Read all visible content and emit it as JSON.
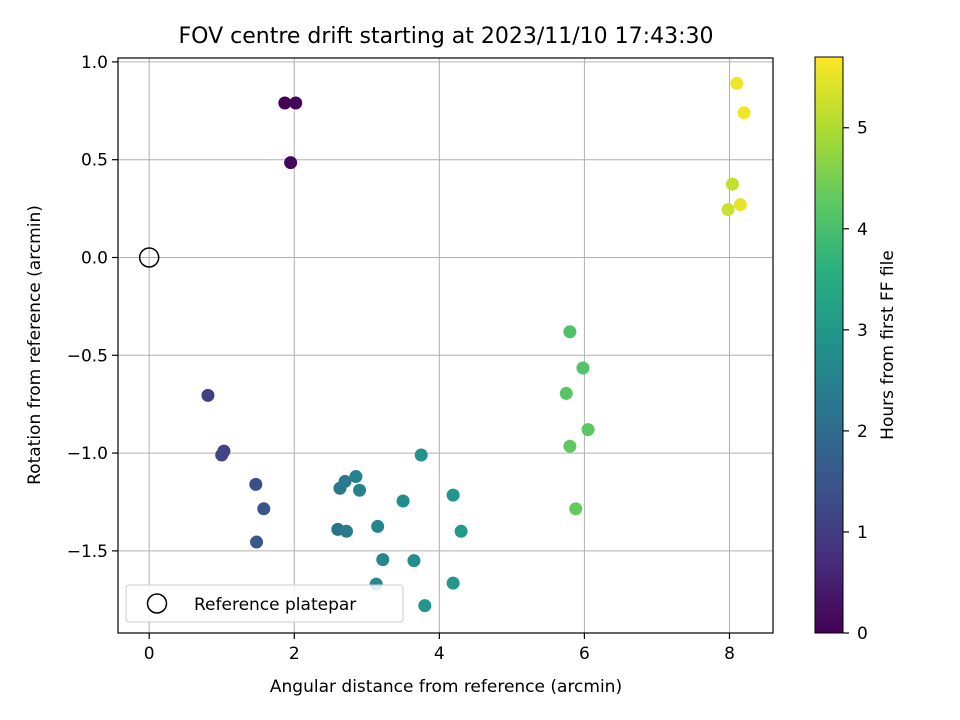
{
  "chart_data": {
    "type": "scatter",
    "title": "FOV centre drift starting at 2023/11/10 17:43:30",
    "xlabel": "Angular distance from reference (arcmin)",
    "ylabel": "Rotation from reference (arcmin)",
    "xlim": [
      -0.43,
      8.6
    ],
    "ylim": [
      -1.92,
      1.02
    ],
    "xticks": [
      0,
      2,
      4,
      6,
      8
    ],
    "xtick_labels": [
      "0",
      "2",
      "4",
      "6",
      "8"
    ],
    "yticks": [
      1.0,
      0.5,
      0.0,
      -0.5,
      -1.0,
      -1.5
    ],
    "ytick_labels": [
      "1.0",
      "0.5",
      "0.0",
      "−0.5",
      "−1.0",
      "−1.5"
    ],
    "grid": true,
    "legend": {
      "placement": "lower-left",
      "entries": [
        "Reference platepar"
      ]
    },
    "reference_point": {
      "x": 0,
      "y": 0
    },
    "colorbar": {
      "label": "Hours from first FF file",
      "colormap": "viridis",
      "range": [
        0,
        5.7
      ],
      "ticks": [
        0,
        1,
        2,
        3,
        4,
        5
      ],
      "tick_labels": [
        "0",
        "1",
        "2",
        "3",
        "4",
        "5"
      ]
    },
    "points": [
      {
        "x": 1.87,
        "y": 0.79,
        "c": 0.0
      },
      {
        "x": 2.02,
        "y": 0.79,
        "c": 0.05
      },
      {
        "x": 1.95,
        "y": 0.485,
        "c": 0.1
      },
      {
        "x": 0.81,
        "y": -0.705,
        "c": 1.1
      },
      {
        "x": 1.03,
        "y": -0.99,
        "c": 1.15
      },
      {
        "x": 1.0,
        "y": -1.01,
        "c": 1.2
      },
      {
        "x": 1.47,
        "y": -1.16,
        "c": 1.4
      },
      {
        "x": 1.58,
        "y": -1.285,
        "c": 1.5
      },
      {
        "x": 1.48,
        "y": -1.455,
        "c": 1.55
      },
      {
        "x": 2.6,
        "y": -1.39,
        "c": 2.2
      },
      {
        "x": 2.63,
        "y": -1.18,
        "c": 2.3
      },
      {
        "x": 2.7,
        "y": -1.145,
        "c": 2.35
      },
      {
        "x": 2.72,
        "y": -1.4,
        "c": 2.4
      },
      {
        "x": 2.85,
        "y": -1.12,
        "c": 2.5
      },
      {
        "x": 2.9,
        "y": -1.19,
        "c": 2.55
      },
      {
        "x": 3.15,
        "y": -1.375,
        "c": 2.6
      },
      {
        "x": 3.22,
        "y": -1.545,
        "c": 2.65
      },
      {
        "x": 3.13,
        "y": -1.67,
        "c": 2.7
      },
      {
        "x": 3.5,
        "y": -1.245,
        "c": 2.75
      },
      {
        "x": 3.65,
        "y": -1.55,
        "c": 2.8
      },
      {
        "x": 3.75,
        "y": -1.01,
        "c": 2.9
      },
      {
        "x": 3.8,
        "y": -1.78,
        "c": 2.95
      },
      {
        "x": 4.19,
        "y": -1.215,
        "c": 3.0
      },
      {
        "x": 4.19,
        "y": -1.665,
        "c": 3.05
      },
      {
        "x": 4.3,
        "y": -1.4,
        "c": 3.1
      },
      {
        "x": 5.8,
        "y": -0.38,
        "c": 4.1
      },
      {
        "x": 5.98,
        "y": -0.565,
        "c": 4.15
      },
      {
        "x": 5.75,
        "y": -0.695,
        "c": 4.2
      },
      {
        "x": 6.05,
        "y": -0.88,
        "c": 4.25
      },
      {
        "x": 5.8,
        "y": -0.965,
        "c": 4.3
      },
      {
        "x": 5.88,
        "y": -1.285,
        "c": 4.35
      },
      {
        "x": 8.1,
        "y": 0.89,
        "c": 5.55
      },
      {
        "x": 8.2,
        "y": 0.74,
        "c": 5.6
      },
      {
        "x": 8.04,
        "y": 0.375,
        "c": 5.2
      },
      {
        "x": 7.98,
        "y": 0.245,
        "c": 5.25
      },
      {
        "x": 8.15,
        "y": 0.27,
        "c": 5.5
      }
    ]
  }
}
